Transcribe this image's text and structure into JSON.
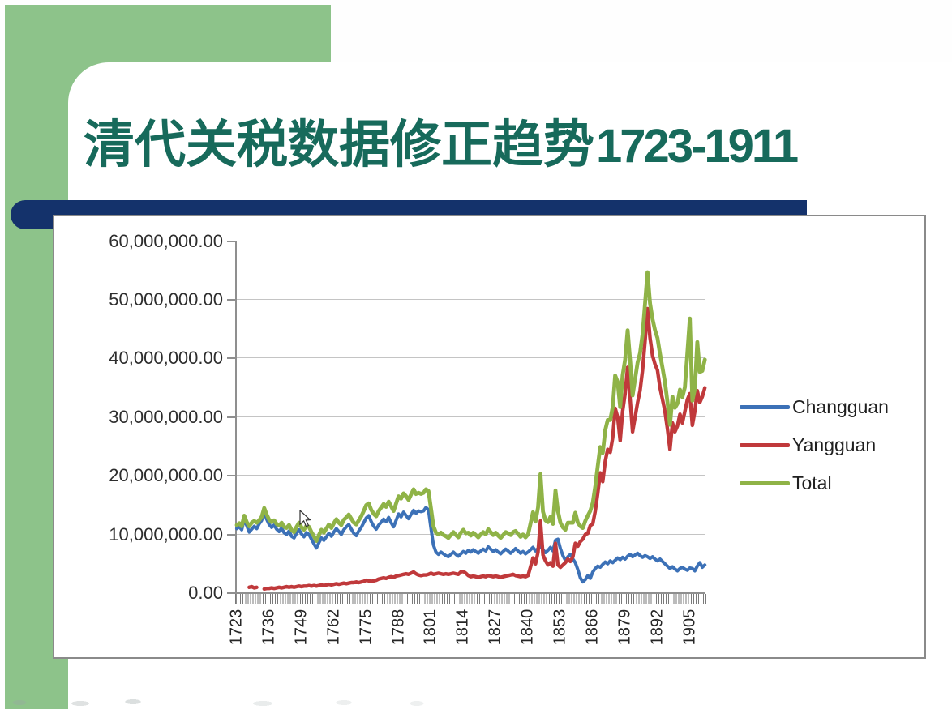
{
  "slide": {
    "title_cn": "清代关税数据修正趋势",
    "title_years": "1723-1911",
    "colors": {
      "title_text": "#176a5b",
      "green_band": "#8dc38a",
      "navy_bar": "#14326b",
      "chart_border": "#8a8a8a",
      "gridline": "#c4c4c4",
      "axis": "#8f8f8f"
    }
  },
  "chart_data": {
    "type": "line",
    "title": "",
    "xlabel": "",
    "ylabel": "",
    "x_start": 1723,
    "x_end": 1911,
    "ylim": [
      0,
      60000000
    ],
    "grid": "horizontal",
    "legend_position": "right",
    "y_tick_labels": [
      "60,000,000.00",
      "50,000,000.00",
      "40,000,000.00",
      "30,000,000.00",
      "20,000,000.00",
      "10,000,000.00",
      "0.00"
    ],
    "y_ticks_millions": [
      60,
      50,
      40,
      30,
      20,
      10,
      0
    ],
    "x_tick_years": [
      1723,
      1736,
      1749,
      1762,
      1775,
      1788,
      1801,
      1814,
      1827,
      1840,
      1853,
      1866,
      1879,
      1892,
      1905
    ],
    "series": [
      {
        "name": "Changguan",
        "color": "#3c71b7",
        "values_millions": [
          11.0,
          11.3,
          10.8,
          12.6,
          11.5,
          10.4,
          10.9,
          11.4,
          11.0,
          11.8,
          12.4,
          13.8,
          12.6,
          11.7,
          11.2,
          11.6,
          10.9,
          10.5,
          11.1,
          10.3,
          10.0,
          10.6,
          9.7,
          9.4,
          10.2,
          10.8,
          10.1,
          9.6,
          10.3,
          10.0,
          9.2,
          8.4,
          7.7,
          8.6,
          9.4,
          9.0,
          9.6,
          10.2,
          9.7,
          10.4,
          11.0,
          10.5,
          10.0,
          10.8,
          11.3,
          11.7,
          10.9,
          10.2,
          9.8,
          10.6,
          11.2,
          12.0,
          12.8,
          13.2,
          12.2,
          11.4,
          10.9,
          11.6,
          12.1,
          12.6,
          12.2,
          12.9,
          12.0,
          11.3,
          12.4,
          13.5,
          13.0,
          13.8,
          13.2,
          12.7,
          13.4,
          14.1,
          13.6,
          14.0,
          13.9,
          14.0,
          14.6,
          14.2,
          11.0,
          8.2,
          7.0,
          6.6,
          7.0,
          6.7,
          6.4,
          6.2,
          6.6,
          7.0,
          6.6,
          6.3,
          6.7,
          7.1,
          6.8,
          7.3,
          7.0,
          7.4,
          7.1,
          6.8,
          7.2,
          7.5,
          7.2,
          7.9,
          7.5,
          7.1,
          7.4,
          7.0,
          6.7,
          7.1,
          7.5,
          7.2,
          6.8,
          7.2,
          7.6,
          7.2,
          6.8,
          7.1,
          6.7,
          7.0,
          7.4,
          7.8,
          7.2,
          7.6,
          8.0,
          7.4,
          6.9,
          7.3,
          7.8,
          7.2,
          9.0,
          9.2,
          7.6,
          6.4,
          5.6,
          6.2,
          6.6,
          5.8,
          5.2,
          4.0,
          2.6,
          1.9,
          2.3,
          3.0,
          2.5,
          3.6,
          4.2,
          4.6,
          4.4,
          4.9,
          5.3,
          5.0,
          5.5,
          5.2,
          5.6,
          6.0,
          5.7,
          6.1,
          5.8,
          6.3,
          6.6,
          6.2,
          6.5,
          6.8,
          6.4,
          6.1,
          6.4,
          6.2,
          5.9,
          6.2,
          5.8,
          5.5,
          5.8,
          5.4,
          5.0,
          4.6,
          4.2,
          4.5,
          4.1,
          3.8,
          4.2,
          4.4,
          4.1,
          3.9,
          4.3,
          4.2,
          3.8,
          4.6,
          5.2,
          4.4,
          4.8
        ]
      },
      {
        "name": "Yangguan",
        "color": "#c0393b",
        "values_millions": [
          null,
          null,
          null,
          null,
          null,
          1.0,
          1.1,
          0.9,
          1.0,
          null,
          null,
          0.7,
          0.8,
          0.8,
          0.9,
          0.8,
          0.9,
          1.0,
          0.9,
          1.0,
          1.1,
          1.0,
          1.1,
          1.0,
          1.1,
          1.2,
          1.1,
          1.2,
          1.2,
          1.3,
          1.2,
          1.3,
          1.2,
          1.3,
          1.4,
          1.3,
          1.4,
          1.5,
          1.4,
          1.5,
          1.6,
          1.5,
          1.6,
          1.7,
          1.6,
          1.7,
          1.8,
          1.8,
          1.9,
          1.8,
          1.9,
          2.0,
          2.2,
          2.1,
          2.0,
          2.1,
          2.2,
          2.4,
          2.5,
          2.6,
          2.5,
          2.7,
          2.8,
          2.7,
          2.9,
          3.0,
          3.1,
          3.2,
          3.3,
          3.2,
          3.4,
          3.6,
          3.3,
          3.1,
          3.0,
          3.1,
          3.1,
          3.2,
          3.4,
          3.2,
          3.3,
          3.4,
          3.3,
          3.2,
          3.3,
          3.2,
          3.3,
          3.4,
          3.3,
          3.2,
          3.6,
          3.7,
          3.4,
          3.0,
          2.8,
          2.9,
          2.8,
          2.7,
          2.8,
          2.9,
          2.8,
          3.0,
          2.9,
          2.8,
          2.9,
          2.8,
          2.7,
          2.8,
          2.9,
          3.0,
          3.1,
          3.2,
          3.0,
          2.9,
          2.8,
          2.9,
          2.8,
          3.0,
          4.5,
          6.0,
          5.0,
          7.0,
          12.3,
          6.5,
          5.5,
          4.8,
          5.2,
          4.6,
          8.5,
          4.8,
          4.4,
          4.8,
          5.2,
          5.8,
          5.4,
          6.2,
          8.5,
          8.0,
          8.8,
          9.2,
          10.0,
          10.2,
          11.5,
          11.8,
          14.0,
          17.0,
          20.5,
          19.0,
          22.5,
          24.5,
          24.0,
          26.5,
          31.5,
          30.0,
          26.0,
          31.0,
          34.0,
          38.5,
          33.0,
          27.5,
          30.0,
          32.5,
          34.5,
          38.0,
          43.0,
          48.5,
          43.5,
          40.5,
          39.0,
          38.0,
          35.0,
          33.0,
          31.0,
          28.0,
          24.5,
          29.0,
          27.5,
          28.5,
          30.5,
          29.0,
          31.0,
          33.0,
          34.0,
          28.6,
          31.0,
          34.5,
          32.5,
          33.5,
          35.0
        ]
      },
      {
        "name": "Total",
        "color": "#8fb347",
        "values_millions": [
          11.6,
          11.9,
          11.4,
          13.2,
          12.1,
          11.4,
          12.0,
          12.3,
          12.0,
          12.4,
          13.0,
          14.5,
          13.4,
          12.5,
          12.1,
          12.4,
          11.8,
          11.5,
          12.0,
          11.3,
          11.1,
          11.6,
          10.8,
          10.4,
          11.3,
          12.0,
          11.2,
          10.8,
          11.5,
          11.3,
          10.4,
          9.7,
          8.9,
          9.9,
          10.8,
          10.3,
          11.0,
          11.7,
          11.1,
          11.9,
          12.6,
          12.0,
          11.6,
          12.5,
          12.9,
          13.4,
          12.7,
          12.0,
          11.7,
          12.4,
          13.1,
          14.0,
          15.0,
          15.3,
          14.2,
          13.5,
          13.1,
          14.0,
          14.6,
          15.2,
          14.7,
          15.6,
          14.8,
          14.0,
          15.3,
          16.5,
          16.1,
          17.0,
          16.5,
          15.9,
          16.8,
          17.7,
          16.9,
          17.1,
          16.9,
          17.1,
          17.7,
          17.4,
          14.4,
          11.4,
          10.3,
          10.0,
          10.3,
          9.9,
          9.7,
          9.4,
          9.9,
          10.4,
          9.9,
          9.5,
          10.3,
          10.8,
          10.2,
          10.3,
          9.8,
          10.3,
          9.9,
          9.5,
          10.0,
          10.4,
          10.0,
          10.9,
          10.4,
          9.9,
          10.3,
          9.8,
          9.4,
          9.9,
          10.4,
          10.2,
          9.9,
          10.4,
          10.6,
          10.1,
          9.6,
          10.0,
          9.5,
          10.0,
          11.9,
          13.8,
          12.2,
          14.6,
          20.3,
          13.9,
          12.4,
          12.1,
          13.0,
          11.8,
          17.5,
          14.0,
          12.0,
          11.2,
          10.8,
          12.0,
          12.0,
          12.0,
          13.7,
          12.0,
          11.4,
          11.1,
          12.3,
          13.2,
          14.0,
          15.4,
          18.2,
          21.6,
          24.9,
          23.9,
          27.8,
          29.5,
          29.5,
          31.7,
          37.1,
          36.0,
          31.7,
          37.1,
          39.8,
          44.8,
          39.6,
          33.7,
          36.5,
          39.3,
          40.9,
          44.1,
          49.4,
          54.7,
          49.4,
          46.7,
          44.8,
          43.5,
          40.8,
          38.4,
          36.0,
          32.6,
          28.7,
          33.5,
          31.6,
          32.3,
          34.7,
          33.4,
          35.1,
          41.0,
          46.8,
          32.8,
          34.8,
          42.8,
          37.7,
          37.9,
          39.8
        ]
      }
    ]
  }
}
